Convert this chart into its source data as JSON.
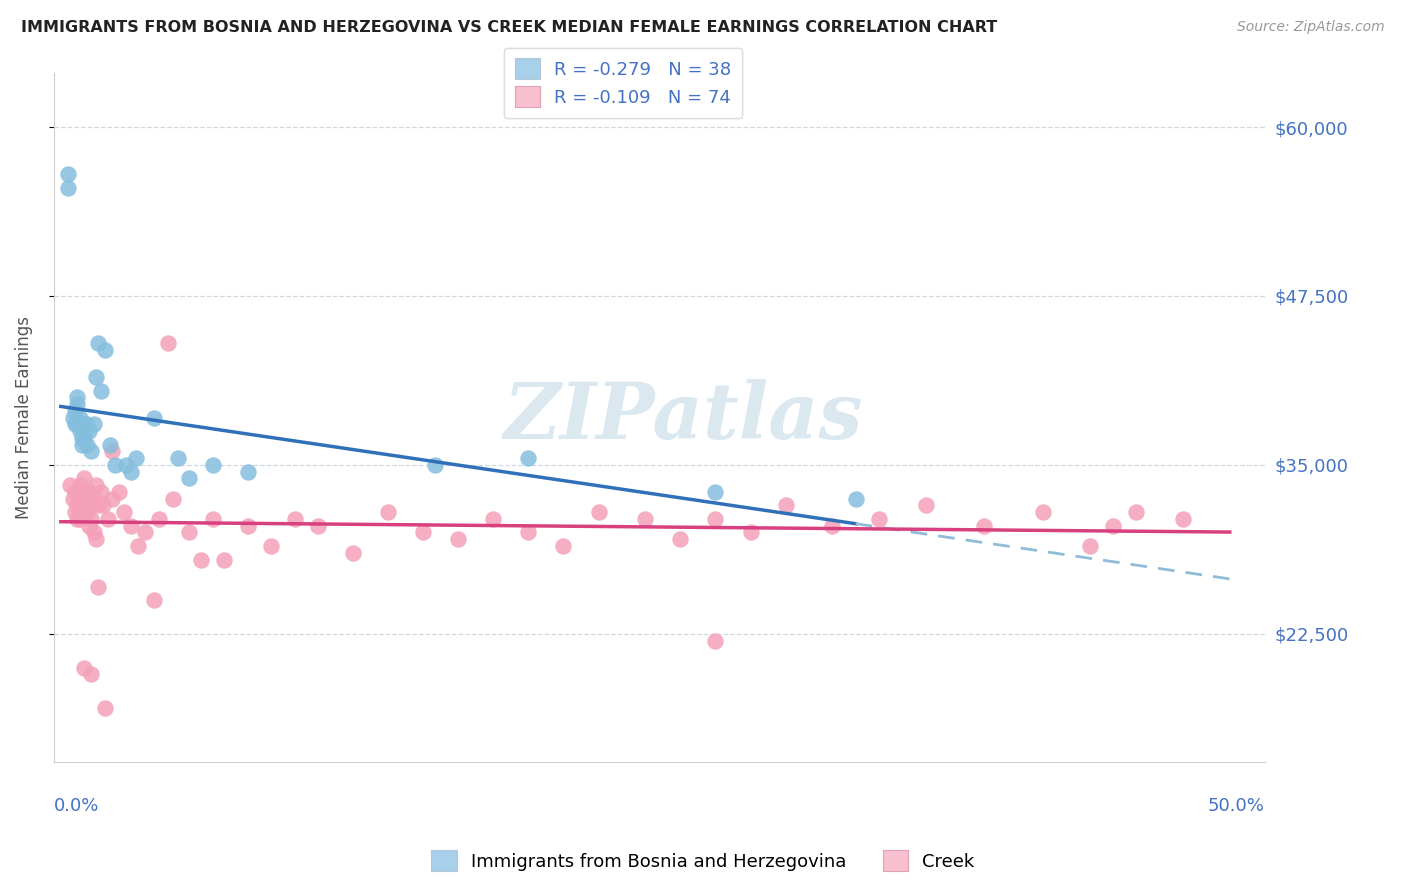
{
  "title": "IMMIGRANTS FROM BOSNIA AND HERZEGOVINA VS CREEK MEDIAN FEMALE EARNINGS CORRELATION CHART",
  "source": "Source: ZipAtlas.com",
  "ylabel": "Median Female Earnings",
  "ytick_vals": [
    22500,
    35000,
    47500,
    60000
  ],
  "ytick_labels": [
    "$22,500",
    "$35,000",
    "$47,500",
    "$60,000"
  ],
  "color_blue_scatter": "#85bedd",
  "color_pink_scatter": "#f4a0b8",
  "color_blue_patch": "#a8d0ea",
  "color_pink_patch": "#f9c0d0",
  "color_line_blue": "#3070b8",
  "color_line_pink": "#d84080",
  "color_line_blue_dash": "#90bcd8",
  "color_axis_blue": "#4472c4",
  "watermark_color": "#dce8f0",
  "grid_color": "#d0d8e0",
  "legend1_r": "-0.279",
  "legend1_n": "38",
  "legend2_r": "-0.109",
  "legend2_n": "74",
  "legend_label1": "Immigrants from Bosnia and Herzegovina",
  "legend_label2": "Creek",
  "blue_x": [
    0.003,
    0.003,
    0.005,
    0.006,
    0.006,
    0.007,
    0.007,
    0.007,
    0.008,
    0.008,
    0.009,
    0.009,
    0.01,
    0.01,
    0.01,
    0.011,
    0.011,
    0.012,
    0.013,
    0.014,
    0.015,
    0.016,
    0.017,
    0.019,
    0.021,
    0.023,
    0.028,
    0.03,
    0.032,
    0.04,
    0.05,
    0.055,
    0.065,
    0.08,
    0.16,
    0.2,
    0.28,
    0.34
  ],
  "blue_y": [
    56500,
    55500,
    38500,
    38000,
    39000,
    40000,
    39500,
    38000,
    37500,
    38500,
    37000,
    36500,
    37500,
    38000,
    37000,
    36500,
    38000,
    37500,
    36000,
    38000,
    41500,
    44000,
    40500,
    43500,
    36500,
    35000,
    35000,
    34500,
    35500,
    38500,
    35500,
    34000,
    35000,
    34500,
    35000,
    35500,
    33000,
    32500
  ],
  "pink_x": [
    0.004,
    0.005,
    0.006,
    0.006,
    0.007,
    0.007,
    0.008,
    0.008,
    0.008,
    0.009,
    0.009,
    0.01,
    0.01,
    0.01,
    0.011,
    0.011,
    0.012,
    0.012,
    0.013,
    0.013,
    0.014,
    0.014,
    0.015,
    0.015,
    0.016,
    0.017,
    0.018,
    0.02,
    0.022,
    0.025,
    0.027,
    0.03,
    0.033,
    0.036,
    0.04,
    0.042,
    0.048,
    0.055,
    0.06,
    0.065,
    0.07,
    0.08,
    0.09,
    0.1,
    0.11,
    0.125,
    0.14,
    0.155,
    0.17,
    0.185,
    0.2,
    0.215,
    0.23,
    0.25,
    0.265,
    0.28,
    0.295,
    0.31,
    0.33,
    0.35,
    0.37,
    0.395,
    0.42,
    0.44,
    0.46,
    0.48,
    0.01,
    0.013,
    0.016,
    0.019,
    0.022,
    0.046,
    0.28,
    0.45
  ],
  "pink_y": [
    33500,
    32500,
    33000,
    31500,
    32000,
    31000,
    32500,
    33500,
    31000,
    32000,
    31500,
    33000,
    32000,
    34000,
    32500,
    31500,
    33000,
    30500,
    32000,
    31000,
    30000,
    32500,
    33500,
    29500,
    32000,
    33000,
    32000,
    31000,
    32500,
    33000,
    31500,
    30500,
    29000,
    30000,
    25000,
    31000,
    32500,
    30000,
    28000,
    31000,
    28000,
    30500,
    29000,
    31000,
    30500,
    28500,
    31500,
    30000,
    29500,
    31000,
    30000,
    29000,
    31500,
    31000,
    29500,
    31000,
    30000,
    32000,
    30500,
    31000,
    32000,
    30500,
    31500,
    29000,
    31500,
    31000,
    20000,
    19500,
    26000,
    17000,
    36000,
    44000,
    22000,
    30500
  ]
}
